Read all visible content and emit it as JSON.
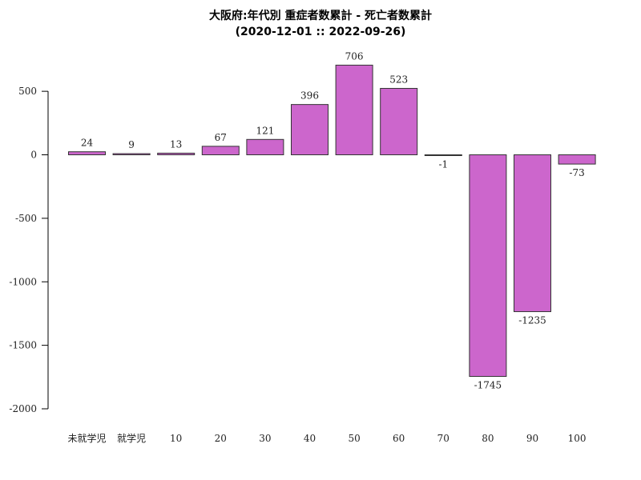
{
  "chart_data": {
    "type": "bar",
    "title": "大阪府:年代別 重症者数累計 - 死亡者数累計",
    "subtitle": "(2020-12-01 :: 2022-09-26)",
    "xlabel": "",
    "ylabel": "",
    "categories": [
      "未就学児",
      "就学児",
      "10",
      "20",
      "30",
      "40",
      "50",
      "60",
      "70",
      "80",
      "90",
      "100"
    ],
    "values": [
      24,
      9,
      13,
      67,
      121,
      396,
      706,
      523,
      -1,
      -1745,
      -1235,
      -73
    ],
    "ylim": [
      -2000,
      750
    ],
    "yticks": [
      500,
      0,
      -500,
      -1000,
      -1500,
      -2000
    ],
    "grid": false,
    "legend": "none",
    "colors": {
      "bar_fill": "#cc66cc",
      "bar_stroke": "#333333"
    }
  }
}
